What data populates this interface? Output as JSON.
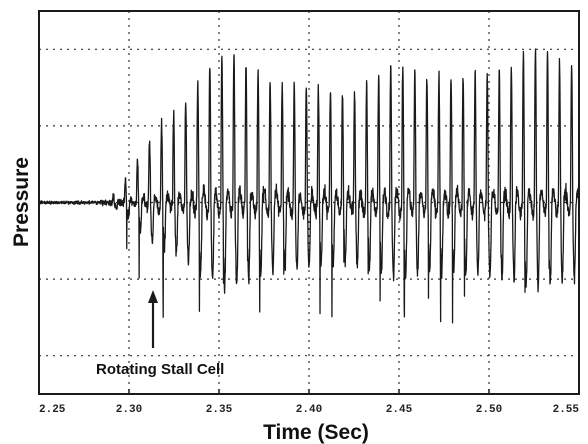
{
  "chart_data": {
    "type": "line",
    "title": "",
    "xlabel": "Time (Sec)",
    "ylabel": "Pressure",
    "x_ticks": [
      2.25,
      2.3,
      2.35,
      2.4,
      2.45,
      2.5,
      2.55
    ],
    "x_tick_labels": [
      "2.25",
      "2.30",
      "2.35",
      "2.40",
      "2.45",
      "2.50",
      "2.55"
    ],
    "xlim": [
      2.25,
      2.55
    ],
    "ylim": [
      0,
      1
    ],
    "grid": true,
    "grid_style": "dotted",
    "y_grid_levels": [
      0.1,
      0.3,
      0.5,
      0.7,
      0.9
    ],
    "y_tick_labels_shown": false,
    "line_color": "#1a1a1a",
    "baseline_level": 0.5,
    "baseline_end_time": 2.284,
    "stall_period_sec": 0.0067,
    "series": [
      {
        "name": "",
        "description_points": [
          {
            "t": 2.25,
            "p": 0.5
          },
          {
            "t": 2.28,
            "p": 0.51
          },
          {
            "t": 2.297,
            "p": 0.62
          },
          {
            "t": 2.305,
            "p": 0.66
          },
          {
            "t": 2.31,
            "p": 0.68
          },
          {
            "t": 2.325,
            "p": 0.73
          },
          {
            "t": 2.345,
            "p": 0.86
          },
          {
            "t": 2.355,
            "p": 0.9
          },
          {
            "t": 2.375,
            "p": 0.83
          },
          {
            "t": 2.4,
            "p": 0.8
          },
          {
            "t": 2.425,
            "p": 0.78
          },
          {
            "t": 2.445,
            "p": 0.86
          },
          {
            "t": 2.475,
            "p": 0.82
          },
          {
            "t": 2.505,
            "p": 0.84
          },
          {
            "t": 2.525,
            "p": 0.9
          },
          {
            "t": 2.545,
            "p": 0.86
          }
        ]
      }
    ],
    "annotations": [
      {
        "text": "Rotating Stall Cell",
        "target_t": 2.3095,
        "target_p": 0.33
      }
    ]
  }
}
